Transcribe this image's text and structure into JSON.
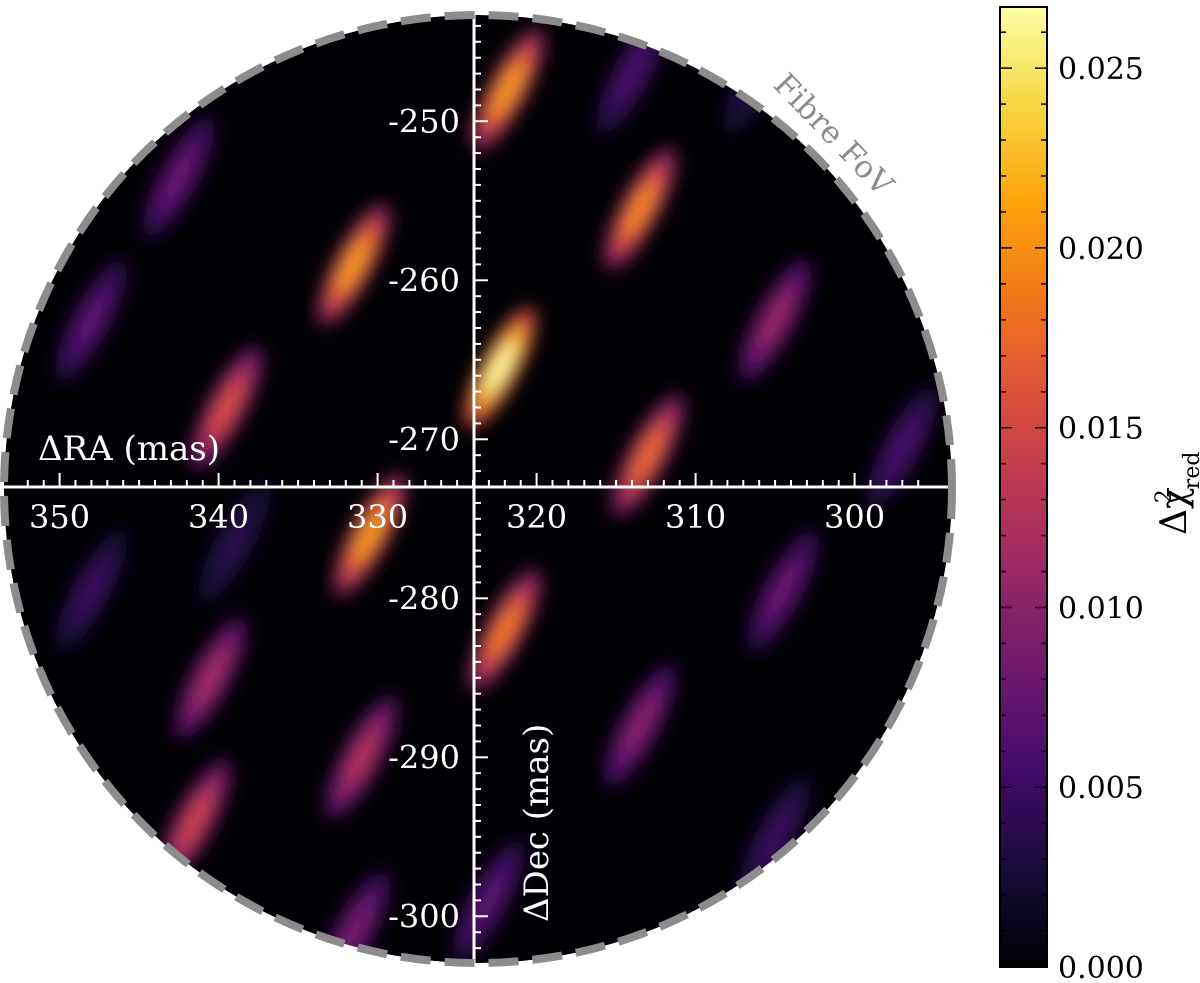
{
  "chart_data": {
    "type": "heatmap",
    "title": "",
    "xlabel": "ΔRA (mas)",
    "ylabel": "ΔDec (mas)",
    "x_ticks": [
      350,
      340,
      330,
      320,
      310,
      300
    ],
    "y_ticks": [
      -250,
      -260,
      -270,
      -280,
      -290,
      -300
    ],
    "x_range": [
      353,
      294
    ],
    "y_range": [
      -243,
      -304
    ],
    "fov_label": "Fibre FoV",
    "fov_center": [
      324,
      -273.5
    ],
    "fov_radius": 29.6,
    "colormap": "inferno",
    "colorbar": {
      "label": "Δχ²red",
      "label_main": "Δχ",
      "label_sup": "2",
      "label_sub": "red",
      "range": [
        0,
        0.0267
      ],
      "ticks": [
        "0.000",
        "0.005",
        "0.010",
        "0.015",
        "0.020",
        "0.025"
      ],
      "tick_values": [
        0,
        0.005,
        0.01,
        0.015,
        0.02,
        0.025
      ]
    },
    "blobs": [
      {
        "x": 321.8,
        "y": -248.0,
        "amp": 0.021
      },
      {
        "x": 331.5,
        "y": -259.0,
        "amp": 0.021
      },
      {
        "x": 313.5,
        "y": -255.5,
        "amp": 0.02
      },
      {
        "x": 322.3,
        "y": -265.5,
        "amp": 0.027
      },
      {
        "x": 339.5,
        "y": -268.0,
        "amp": 0.016
      },
      {
        "x": 330.5,
        "y": -276.0,
        "amp": 0.021
      },
      {
        "x": 313.0,
        "y": -271.0,
        "amp": 0.018
      },
      {
        "x": 322.0,
        "y": -282.0,
        "amp": 0.019
      },
      {
        "x": 305.0,
        "y": -262.5,
        "amp": 0.011
      },
      {
        "x": 340.5,
        "y": -285.0,
        "amp": 0.012
      },
      {
        "x": 331.0,
        "y": -290.0,
        "amp": 0.013
      },
      {
        "x": 341.5,
        "y": -294.0,
        "amp": 0.015
      },
      {
        "x": 313.5,
        "y": -288.0,
        "amp": 0.01
      },
      {
        "x": 304.5,
        "y": -279.5,
        "amp": 0.008
      },
      {
        "x": 342.5,
        "y": -253.5,
        "amp": 0.008
      },
      {
        "x": 348.0,
        "y": -262.5,
        "amp": 0.007
      },
      {
        "x": 297.0,
        "y": -270.5,
        "amp": 0.006
      },
      {
        "x": 323.0,
        "y": -299.0,
        "amp": 0.007
      },
      {
        "x": 331.5,
        "y": -301.0,
        "amp": 0.009
      },
      {
        "x": 314.0,
        "y": -247.0,
        "amp": 0.006
      },
      {
        "x": 348.0,
        "y": -279.5,
        "amp": 0.005
      },
      {
        "x": 305.0,
        "y": -295.0,
        "amp": 0.005
      },
      {
        "x": 339.0,
        "y": -276.5,
        "amp": 0.004
      },
      {
        "x": 306.0,
        "y": -247.0,
        "amp": 0.004
      }
    ]
  }
}
